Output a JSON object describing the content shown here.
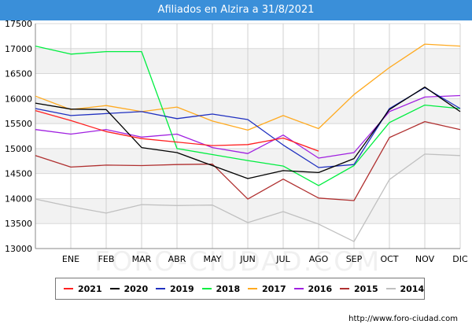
{
  "title": "Afiliados en Alzira a 31/8/2021",
  "footer": "http://www.foro-ciudad.com",
  "watermark": "FORO-CIUDAD.COM",
  "chart_data": {
    "type": "line",
    "title": "Afiliados en Alzira a 31/8/2021",
    "categories": [
      "DIC",
      "ENE",
      "FEB",
      "MAR",
      "ABR",
      "MAY",
      "JUN",
      "JUL",
      "AGO",
      "SEP",
      "OCT",
      "NOV",
      "DIC"
    ],
    "x_tick_labels": [
      "ENE",
      "FEB",
      "MAR",
      "ABR",
      "MAY",
      "JUN",
      "JUL",
      "AGO",
      "SEP",
      "OCT",
      "NOV",
      "DIC"
    ],
    "ylim": [
      13000,
      17500
    ],
    "yticks": [
      13000,
      13500,
      14000,
      14500,
      15000,
      15500,
      16000,
      16500,
      17000,
      17500
    ],
    "grid": true,
    "legend_position": "bottom",
    "series": [
      {
        "name": "2021",
        "color": "#ff2020",
        "values": [
          15760,
          15560,
          15340,
          15200,
          15130,
          15060,
          15080,
          15210,
          14950,
          null,
          null,
          null,
          null
        ]
      },
      {
        "name": "2020",
        "color": "#000000",
        "values": [
          15910,
          15790,
          15780,
          15020,
          14920,
          14660,
          14400,
          14560,
          14520,
          14800,
          15780,
          16230,
          15740
        ]
      },
      {
        "name": "2019",
        "color": "#2030c0",
        "values": [
          15800,
          15660,
          15700,
          15740,
          15600,
          15690,
          15580,
          15070,
          14620,
          14680,
          15800,
          16220,
          15800
        ]
      },
      {
        "name": "2018",
        "color": "#00ee40",
        "values": [
          17050,
          16890,
          16940,
          16940,
          15000,
          14880,
          14760,
          14650,
          14260,
          14660,
          15520,
          15870,
          15800
        ]
      },
      {
        "name": "2017",
        "color": "#ffaa20",
        "values": [
          16050,
          15780,
          15860,
          15740,
          15830,
          15550,
          15370,
          15660,
          15400,
          16080,
          16620,
          17090,
          17050
        ]
      },
      {
        "name": "2016",
        "color": "#a020e0",
        "values": [
          15380,
          15290,
          15380,
          15230,
          15290,
          15020,
          14900,
          15270,
          14810,
          14920,
          15740,
          16030,
          16060
        ]
      },
      {
        "name": "2015",
        "color": "#b03030",
        "values": [
          14860,
          14630,
          14670,
          14660,
          14680,
          14690,
          13990,
          14390,
          14010,
          13960,
          15220,
          15540,
          15380
        ]
      },
      {
        "name": "2014",
        "color": "#c0c0c0",
        "values": [
          13990,
          13840,
          13710,
          13880,
          13860,
          13870,
          13520,
          13740,
          13490,
          13140,
          14380,
          14890,
          14860
        ]
      }
    ]
  }
}
